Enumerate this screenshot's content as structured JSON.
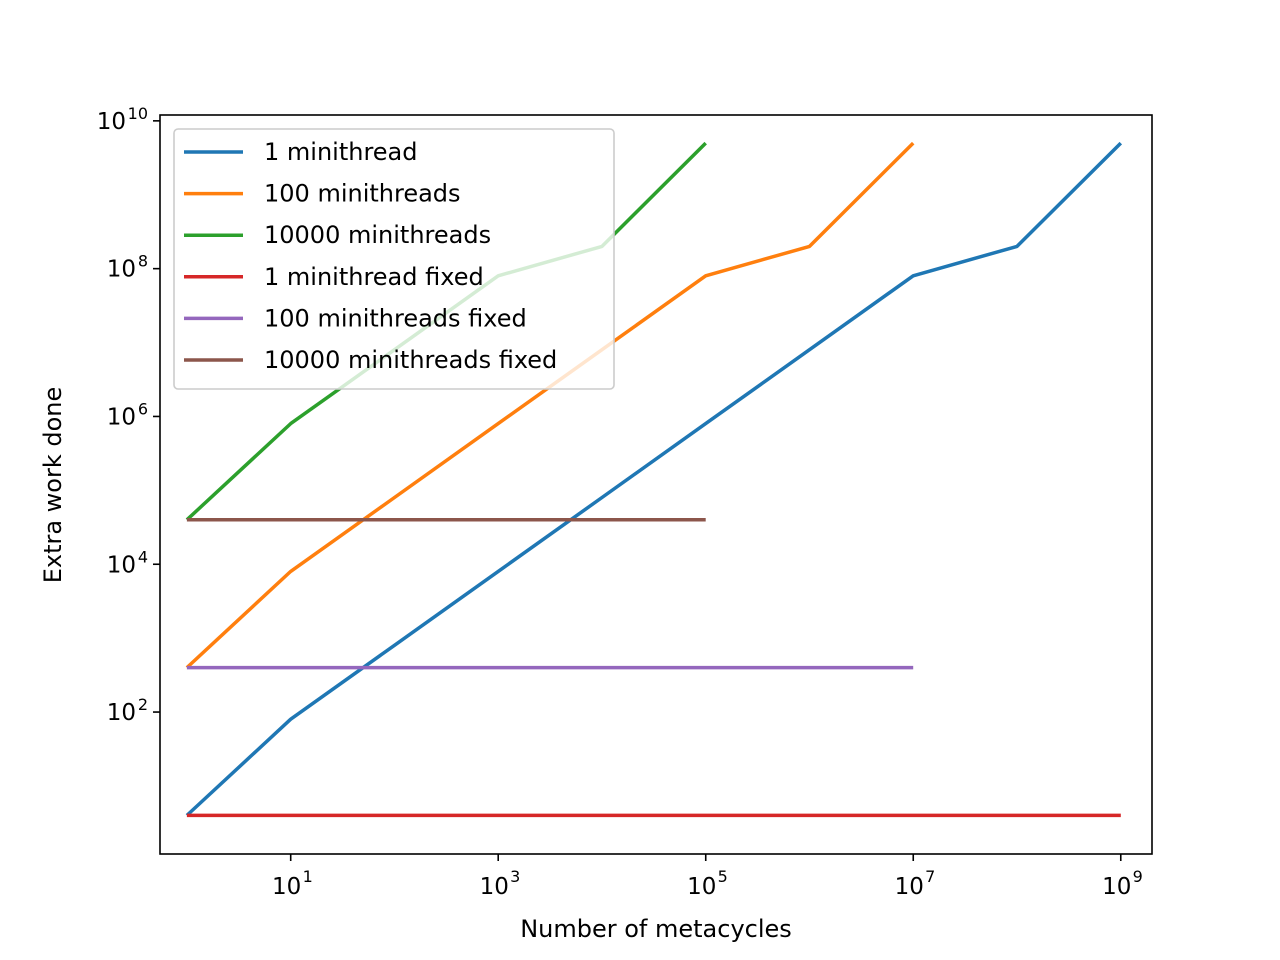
{
  "chart_data": {
    "type": "line",
    "title": "",
    "xlabel": "Number of metacycles",
    "ylabel": "Extra work done",
    "xscale": "log",
    "yscale": "log",
    "xlim": [
      0.55,
      2000000000
    ],
    "ylim": [
      1.2,
      12000000000
    ],
    "x_ticks": [
      {
        "value": 10,
        "base": "10",
        "exp": "1"
      },
      {
        "value": 1000,
        "base": "10",
        "exp": "3"
      },
      {
        "value": 100000,
        "base": "10",
        "exp": "5"
      },
      {
        "value": 10000000,
        "base": "10",
        "exp": "7"
      },
      {
        "value": 1000000000,
        "base": "10",
        "exp": "9"
      }
    ],
    "y_ticks": [
      {
        "value": 100,
        "base": "10",
        "exp": "2"
      },
      {
        "value": 10000,
        "base": "10",
        "exp": "4"
      },
      {
        "value": 1000000,
        "base": "10",
        "exp": "6"
      },
      {
        "value": 100000000,
        "base": "10",
        "exp": "8"
      },
      {
        "value": 10000000000,
        "base": "10",
        "exp": "10"
      }
    ],
    "grid": false,
    "legend_position": "upper-left",
    "series": [
      {
        "name": "1 minithread",
        "color": "#1f77b4",
        "x": [
          1,
          10,
          100,
          1000,
          10000,
          100000,
          1000000,
          10000000,
          100000000,
          1000000000
        ],
        "y": [
          4,
          80,
          800,
          8000,
          80000,
          800000,
          8000000,
          80000000,
          200000000,
          5000000000
        ]
      },
      {
        "name": "100 minithreads",
        "color": "#ff7f0e",
        "x": [
          1,
          10,
          100,
          1000,
          10000,
          100000,
          1000000,
          10000000
        ],
        "y": [
          400,
          8000,
          80000,
          800000,
          8000000,
          80000000,
          200000000,
          5000000000
        ]
      },
      {
        "name": "10000 minithreads",
        "color": "#2ca02c",
        "x": [
          1,
          10,
          100,
          1000,
          10000,
          100000
        ],
        "y": [
          40000,
          800000,
          8000000,
          80000000,
          200000000,
          5000000000
        ]
      },
      {
        "name": "1 minithread fixed",
        "color": "#d62728",
        "x": [
          1,
          1000000000
        ],
        "y": [
          4,
          4
        ]
      },
      {
        "name": "100 minithreads fixed",
        "color": "#9467bd",
        "x": [
          1,
          10000000
        ],
        "y": [
          400,
          400
        ]
      },
      {
        "name": "10000 minithreads fixed",
        "color": "#8c564b",
        "x": [
          1,
          100000
        ],
        "y": [
          40000,
          40000
        ]
      }
    ]
  }
}
